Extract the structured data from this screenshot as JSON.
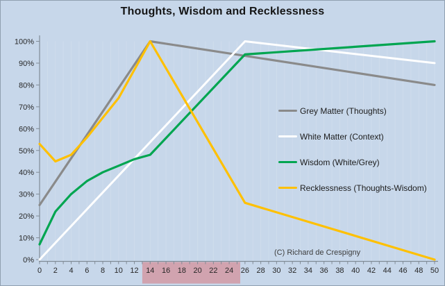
{
  "colors": {
    "background": "#c7d7ea",
    "chart_border": "#8f9fb0",
    "axis": "#808b96",
    "tick_label": "#262626",
    "gridline": "rgba(255,255,255,0.14)",
    "highlight_band": "#d1a3af",
    "title_text": "#141414",
    "legend_text": "#1c1c1c",
    "credit_text": "#3d3d3d"
  },
  "chart_data": {
    "type": "line",
    "title": "Thoughts, Wisdom and Recklessness",
    "credit": "(C) Richard de Crespigny",
    "xlabel": "",
    "ylabel": "",
    "xlim": [
      0,
      50
    ],
    "ylim": [
      0,
      100
    ],
    "grid": "faint-vertical-stripes",
    "legend_position": "middle-right",
    "x_ticks": {
      "values": [
        0,
        2,
        4,
        6,
        8,
        10,
        12,
        14,
        16,
        18,
        20,
        22,
        24,
        26,
        28,
        30,
        32,
        34,
        36,
        38,
        40,
        42,
        44,
        46,
        48,
        50
      ],
      "labels": [
        "0",
        "2",
        "4",
        "6",
        "8",
        "10",
        "12",
        "14",
        "16",
        "18",
        "20",
        "22",
        "24",
        "26",
        "28",
        "30",
        "32",
        "34",
        "36",
        "38",
        "40",
        "42",
        "44",
        "46",
        "48",
        "50"
      ]
    },
    "y_ticks": {
      "values": [
        0,
        10,
        20,
        30,
        40,
        50,
        60,
        70,
        80,
        90,
        100
      ],
      "labels": [
        "0%",
        "10%",
        "20%",
        "30%",
        "40%",
        "50%",
        "60%",
        "70%",
        "80%",
        "90%",
        "100%"
      ]
    },
    "highlight_band": {
      "x_start": 13,
      "x_end": 25.4,
      "location": "x-axis-label-strip"
    },
    "series": [
      {
        "name": "Grey Matter (Thoughts)",
        "color": "#8a8a8a",
        "x": [
          0,
          14,
          50
        ],
        "y": [
          25,
          100,
          80
        ]
      },
      {
        "name": "White Matter (Context)",
        "color": "#ffffff",
        "x": [
          0,
          26,
          50
        ],
        "y": [
          0,
          100,
          90
        ]
      },
      {
        "name": "Wisdom (White/Grey)",
        "color": "#00a550",
        "x": [
          0,
          2,
          4,
          6,
          8,
          10,
          12,
          14,
          26,
          50
        ],
        "y": [
          7,
          22,
          30,
          36,
          40,
          43,
          46,
          48,
          94,
          100
        ]
      },
      {
        "name": "Recklessness (Thoughts-Wisdom)",
        "color": "#ffc000",
        "x": [
          0,
          2,
          4,
          6,
          8,
          10,
          12,
          14,
          26,
          50
        ],
        "y": [
          53,
          45,
          48,
          56,
          65,
          74,
          87,
          100,
          26,
          0
        ]
      }
    ]
  }
}
